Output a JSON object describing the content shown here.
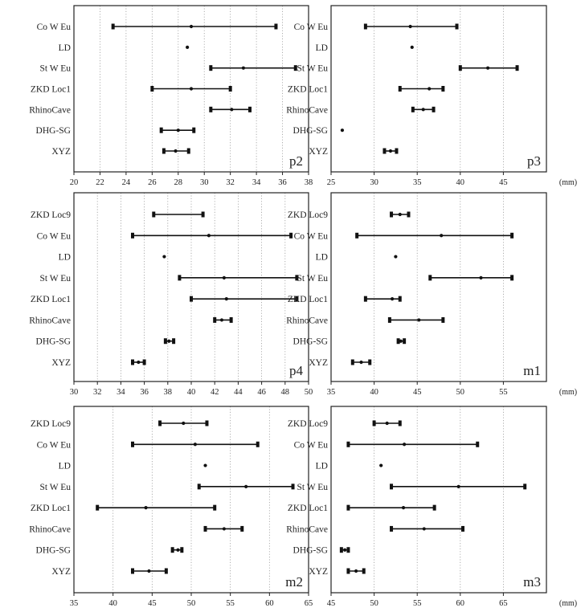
{
  "figure": {
    "unit": "(mm)"
  },
  "chart_data": [
    {
      "id": "p2",
      "type": "range",
      "label": "p2",
      "xlim": [
        20,
        38
      ],
      "xticks": [
        20,
        22,
        24,
        26,
        28,
        30,
        32,
        34,
        36,
        38
      ],
      "grid": true,
      "unit_label": false,
      "rows": [
        {
          "name": "Co W Eu",
          "min": 23.0,
          "mean": 29.0,
          "max": 35.5
        },
        {
          "name": "LD",
          "min": null,
          "mean": 28.7,
          "max": null
        },
        {
          "name": "St W Eu",
          "min": 30.5,
          "mean": 33.0,
          "max": 37.0
        },
        {
          "name": "ZKD Loc1",
          "min": 26.0,
          "mean": 29.0,
          "max": 32.0
        },
        {
          "name": "RhinoCave",
          "min": 30.5,
          "mean": 32.1,
          "max": 33.5
        },
        {
          "name": "DHG-SG",
          "min": 26.7,
          "mean": 28.0,
          "max": 29.2
        },
        {
          "name": "XYZ",
          "min": 26.9,
          "mean": 27.8,
          "max": 28.8
        }
      ]
    },
    {
      "id": "p3",
      "type": "range",
      "label": "p3",
      "xlim": [
        25,
        50
      ],
      "xticks": [
        25,
        30,
        35,
        40,
        45
      ],
      "grid": true,
      "unit_label": true,
      "rows": [
        {
          "name": "Co W Eu",
          "min": 29.0,
          "mean": 34.2,
          "max": 39.6
        },
        {
          "name": "LD",
          "min": null,
          "mean": 34.4,
          "max": null
        },
        {
          "name": "St W Eu",
          "min": 40.0,
          "mean": 43.2,
          "max": 46.6
        },
        {
          "name": "ZKD Loc1",
          "min": 33.0,
          "mean": 36.4,
          "max": 38.0
        },
        {
          "name": "RhinoCave",
          "min": 34.5,
          "mean": 35.7,
          "max": 36.9
        },
        {
          "name": "DHG-SG",
          "min": null,
          "mean": 26.3,
          "max": null
        },
        {
          "name": "XYZ",
          "min": 31.2,
          "mean": 31.9,
          "max": 32.6
        }
      ]
    },
    {
      "id": "p4",
      "type": "range",
      "label": "p4",
      "xlim": [
        30,
        50
      ],
      "xticks": [
        30,
        32,
        34,
        36,
        38,
        40,
        42,
        44,
        46,
        48,
        50
      ],
      "grid": true,
      "unit_label": false,
      "rows": [
        {
          "name": "ZKD Loc9",
          "min": 36.8,
          "mean": null,
          "max": 41.0
        },
        {
          "name": "Co W Eu",
          "min": 35.0,
          "mean": 41.5,
          "max": 48.5
        },
        {
          "name": "LD",
          "min": null,
          "mean": 37.7,
          "max": null
        },
        {
          "name": "St W Eu",
          "min": 39.0,
          "mean": 42.8,
          "max": 49.0
        },
        {
          "name": "ZKD Loc1",
          "min": 40.0,
          "mean": 43.0,
          "max": 49.0
        },
        {
          "name": "RhinoCave",
          "min": 42.0,
          "mean": 42.6,
          "max": 43.4
        },
        {
          "name": "DHG-SG",
          "min": 37.8,
          "mean": 38.1,
          "max": 38.5
        },
        {
          "name": "XYZ",
          "min": 35.0,
          "mean": 35.5,
          "max": 36.0
        }
      ]
    },
    {
      "id": "m1",
      "type": "range",
      "label": "m1",
      "xlim": [
        35,
        60
      ],
      "xticks": [
        35,
        40,
        45,
        50,
        55
      ],
      "grid": true,
      "unit_label": true,
      "rows": [
        {
          "name": "ZKD Loc9",
          "min": 42.0,
          "mean": 43.0,
          "max": 44.0
        },
        {
          "name": "Co W Eu",
          "min": 38.0,
          "mean": 47.8,
          "max": 56.0
        },
        {
          "name": "LD",
          "min": null,
          "mean": 42.5,
          "max": null
        },
        {
          "name": "St W Eu",
          "min": 46.5,
          "mean": 52.4,
          "max": 56.0
        },
        {
          "name": "ZKD Loc1",
          "min": 39.0,
          "mean": 42.1,
          "max": 43.0
        },
        {
          "name": "RhinoCave",
          "min": 41.8,
          "mean": 45.2,
          "max": 48.0
        },
        {
          "name": "DHG-SG",
          "min": 42.8,
          "mean": 43.1,
          "max": 43.5
        },
        {
          "name": "XYZ",
          "min": 37.5,
          "mean": 38.5,
          "max": 39.5
        }
      ]
    },
    {
      "id": "m2",
      "type": "range",
      "label": "m2",
      "xlim": [
        35,
        65
      ],
      "xticks": [
        35,
        40,
        45,
        50,
        55,
        60,
        65
      ],
      "grid": true,
      "unit_label": false,
      "rows": [
        {
          "name": "ZKD Loc9",
          "min": 46.0,
          "mean": 49.0,
          "max": 52.0
        },
        {
          "name": "Co W Eu",
          "min": 42.5,
          "mean": 50.5,
          "max": 58.5
        },
        {
          "name": "LD",
          "min": null,
          "mean": 51.8,
          "max": null
        },
        {
          "name": "St W Eu",
          "min": 51.0,
          "mean": 57.0,
          "max": 63.0
        },
        {
          "name": "ZKD Loc1",
          "min": 38.0,
          "mean": 44.2,
          "max": 53.0
        },
        {
          "name": "RhinoCave",
          "min": 51.8,
          "mean": 54.2,
          "max": 56.5
        },
        {
          "name": "DHG-SG",
          "min": 47.6,
          "mean": 48.3,
          "max": 48.8
        },
        {
          "name": "XYZ",
          "min": 42.5,
          "mean": 44.6,
          "max": 46.8
        }
      ]
    },
    {
      "id": "m3",
      "type": "range",
      "label": "m3",
      "xlim": [
        45,
        70
      ],
      "xticks": [
        45,
        50,
        55,
        60,
        65
      ],
      "grid": true,
      "unit_label": true,
      "rows": [
        {
          "name": "ZKD Loc9",
          "min": 50.0,
          "mean": 51.5,
          "max": 53.0
        },
        {
          "name": "Co W Eu",
          "min": 47.0,
          "mean": 53.5,
          "max": 62.0
        },
        {
          "name": "LD",
          "min": null,
          "mean": 50.8,
          "max": null
        },
        {
          "name": "St W Eu",
          "min": 52.0,
          "mean": 59.8,
          "max": 67.5
        },
        {
          "name": "ZKD Loc1",
          "min": 47.0,
          "mean": 53.4,
          "max": 57.0
        },
        {
          "name": "RhinoCave",
          "min": 52.0,
          "mean": 55.8,
          "max": 60.3
        },
        {
          "name": "DHG-SG",
          "min": 46.2,
          "mean": 46.6,
          "max": 47.0
        },
        {
          "name": "XYZ",
          "min": 47.0,
          "mean": 47.9,
          "max": 48.8
        }
      ]
    }
  ]
}
